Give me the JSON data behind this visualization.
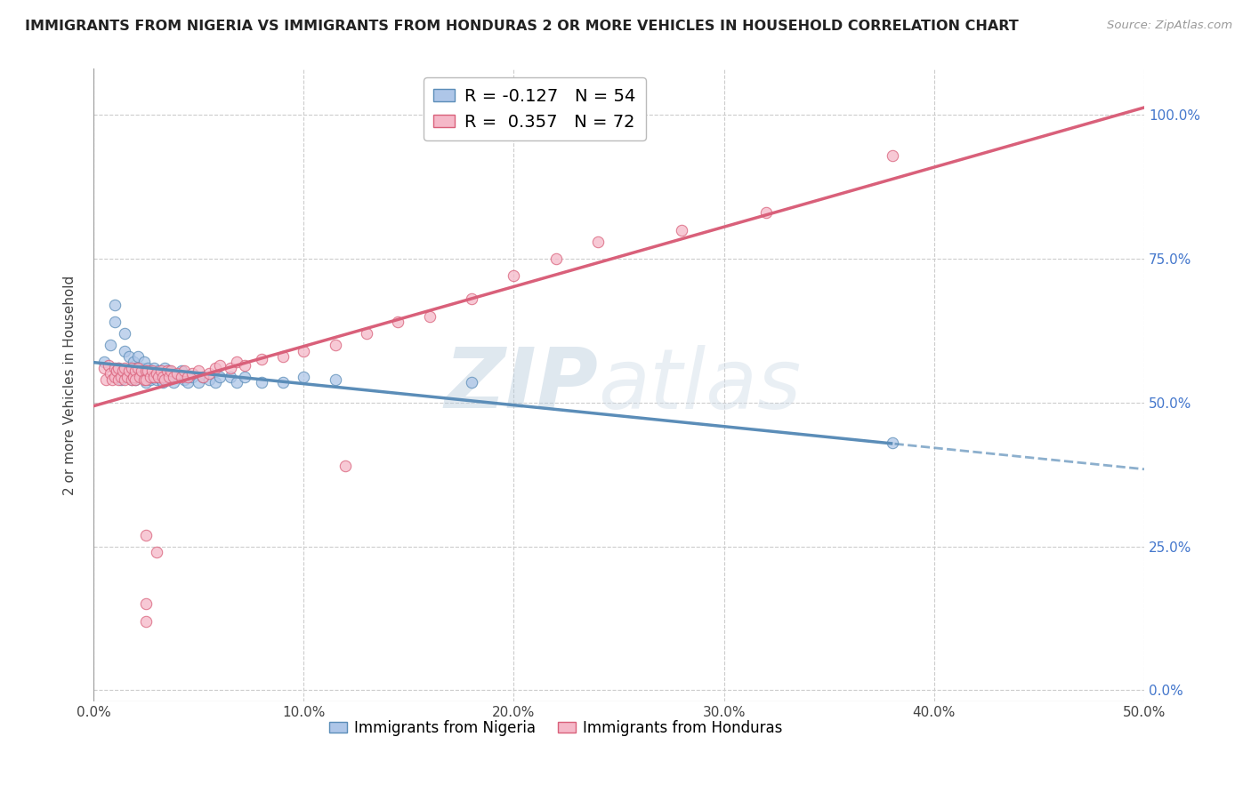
{
  "title": "IMMIGRANTS FROM NIGERIA VS IMMIGRANTS FROM HONDURAS 2 OR MORE VEHICLES IN HOUSEHOLD CORRELATION CHART",
  "source": "Source: ZipAtlas.com",
  "ylabel": "2 or more Vehicles in Household",
  "ytick_labels": [
    "100.0%",
    "75.0%",
    "50.0%",
    "25.0%",
    "0.0%"
  ],
  "ytick_values": [
    1.0,
    0.75,
    0.5,
    0.25,
    0.0
  ],
  "xtick_labels": [
    "0.0%",
    "10.0%",
    "20.0%",
    "30.0%",
    "40.0%",
    "50.0%"
  ],
  "xtick_values": [
    0.0,
    0.1,
    0.2,
    0.3,
    0.4,
    0.5
  ],
  "xmin": 0.0,
  "xmax": 0.5,
  "ymin": -0.02,
  "ymax": 1.08,
  "R_nigeria": -0.127,
  "N_nigeria": 54,
  "R_honduras": 0.357,
  "N_honduras": 72,
  "color_nigeria": "#aec6e8",
  "color_honduras": "#f5b8c8",
  "line_color_nigeria": "#5b8db8",
  "line_color_honduras": "#d9607a",
  "watermark_zip": "ZIP",
  "watermark_atlas": "atlas",
  "legend_label_nigeria": "Immigrants from Nigeria",
  "legend_label_honduras": "Immigrants from Honduras",
  "nigeria_x": [
    0.005,
    0.008,
    0.01,
    0.01,
    0.012,
    0.013,
    0.015,
    0.015,
    0.016,
    0.017,
    0.018,
    0.018,
    0.019,
    0.02,
    0.02,
    0.021,
    0.022,
    0.023,
    0.024,
    0.025,
    0.025,
    0.026,
    0.027,
    0.027,
    0.028,
    0.029,
    0.03,
    0.031,
    0.032,
    0.033,
    0.034,
    0.035,
    0.036,
    0.037,
    0.038,
    0.04,
    0.042,
    0.043,
    0.045,
    0.047,
    0.05,
    0.052,
    0.055,
    0.058,
    0.06,
    0.065,
    0.068,
    0.072,
    0.08,
    0.09,
    0.1,
    0.115,
    0.18,
    0.38
  ],
  "nigeria_y": [
    0.57,
    0.6,
    0.64,
    0.67,
    0.56,
    0.54,
    0.62,
    0.59,
    0.55,
    0.58,
    0.56,
    0.54,
    0.57,
    0.56,
    0.54,
    0.58,
    0.55,
    0.56,
    0.57,
    0.55,
    0.535,
    0.56,
    0.54,
    0.55,
    0.545,
    0.56,
    0.54,
    0.555,
    0.54,
    0.535,
    0.56,
    0.54,
    0.555,
    0.545,
    0.535,
    0.545,
    0.555,
    0.54,
    0.535,
    0.545,
    0.535,
    0.545,
    0.54,
    0.535,
    0.545,
    0.545,
    0.535,
    0.545,
    0.535,
    0.535,
    0.545,
    0.54,
    0.535,
    0.43
  ],
  "honduras_x": [
    0.005,
    0.006,
    0.007,
    0.008,
    0.009,
    0.01,
    0.01,
    0.011,
    0.012,
    0.012,
    0.013,
    0.014,
    0.015,
    0.015,
    0.016,
    0.017,
    0.018,
    0.018,
    0.019,
    0.02,
    0.02,
    0.021,
    0.022,
    0.023,
    0.024,
    0.025,
    0.025,
    0.026,
    0.027,
    0.028,
    0.029,
    0.03,
    0.031,
    0.032,
    0.033,
    0.034,
    0.035,
    0.036,
    0.037,
    0.038,
    0.04,
    0.042,
    0.043,
    0.045,
    0.047,
    0.05,
    0.052,
    0.055,
    0.058,
    0.06,
    0.065,
    0.068,
    0.072,
    0.08,
    0.09,
    0.1,
    0.115,
    0.13,
    0.145,
    0.16,
    0.18,
    0.2,
    0.22,
    0.24,
    0.28,
    0.32,
    0.38,
    0.025,
    0.03,
    0.025,
    0.12,
    0.025
  ],
  "honduras_y": [
    0.56,
    0.54,
    0.565,
    0.55,
    0.54,
    0.56,
    0.545,
    0.555,
    0.54,
    0.56,
    0.545,
    0.555,
    0.54,
    0.56,
    0.545,
    0.555,
    0.54,
    0.56,
    0.545,
    0.555,
    0.54,
    0.56,
    0.545,
    0.555,
    0.54,
    0.555,
    0.54,
    0.555,
    0.545,
    0.555,
    0.545,
    0.55,
    0.545,
    0.555,
    0.545,
    0.54,
    0.555,
    0.545,
    0.555,
    0.545,
    0.55,
    0.545,
    0.555,
    0.545,
    0.55,
    0.555,
    0.545,
    0.55,
    0.56,
    0.565,
    0.56,
    0.57,
    0.565,
    0.575,
    0.58,
    0.59,
    0.6,
    0.62,
    0.64,
    0.65,
    0.68,
    0.72,
    0.75,
    0.78,
    0.8,
    0.83,
    0.93,
    0.27,
    0.24,
    0.15,
    0.39,
    0.12
  ]
}
